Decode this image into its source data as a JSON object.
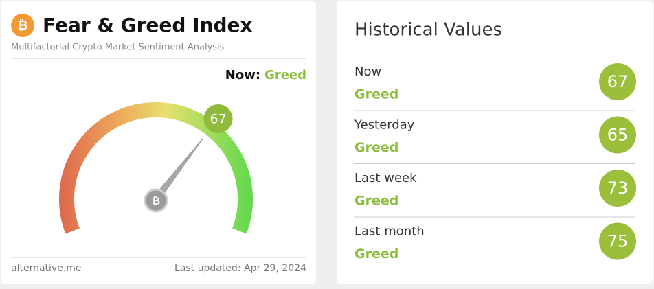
{
  "header": {
    "title": "Fear & Greed Index",
    "subtitle": "Multifactorial Crypto Market Sentiment Analysis"
  },
  "gauge": {
    "now_label": "Now:",
    "classification": "Greed",
    "value": 67
  },
  "footer": {
    "source": "alternative.me",
    "updated": "Last updated: Apr 29, 2024"
  },
  "historical": {
    "title": "Historical Values",
    "rows": [
      {
        "period": "Now",
        "classification": "Greed",
        "value": 67
      },
      {
        "period": "Yesterday",
        "classification": "Greed",
        "value": 65
      },
      {
        "period": "Last week",
        "classification": "Greed",
        "value": 73
      },
      {
        "period": "Last month",
        "classification": "Greed",
        "value": 75
      }
    ]
  }
}
